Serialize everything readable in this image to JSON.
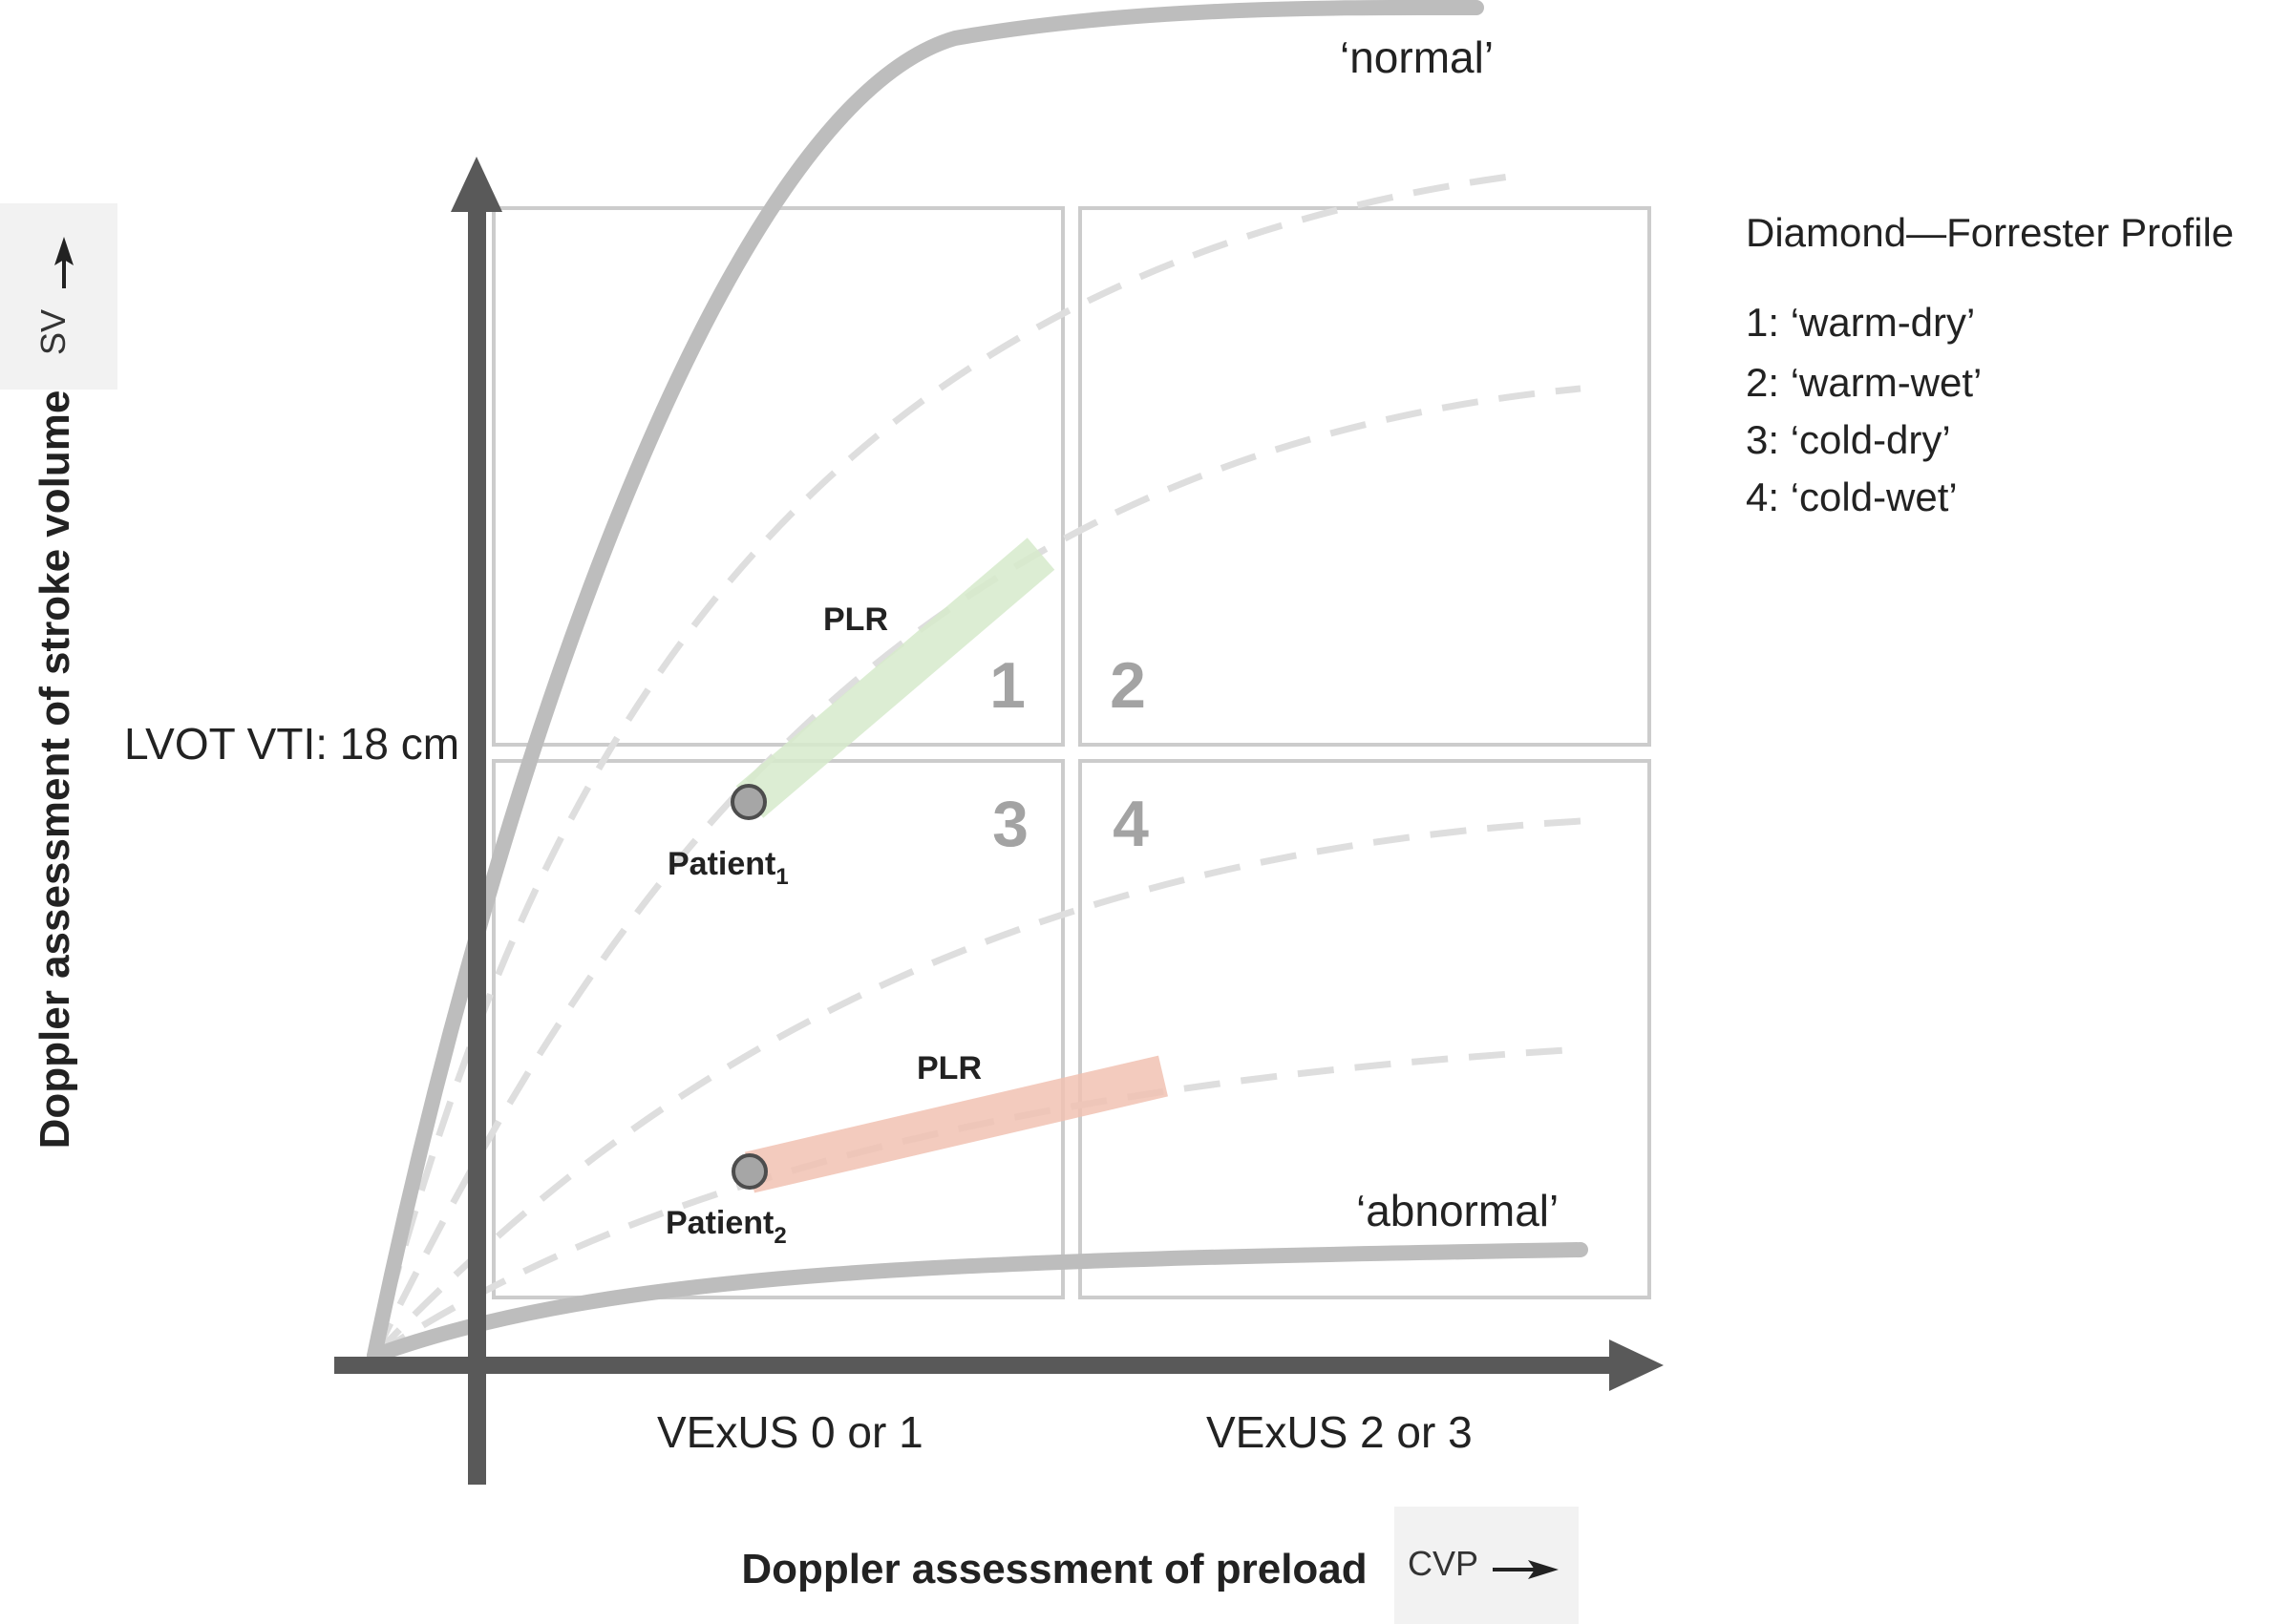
{
  "title": "Diamond—Forrester Profile",
  "profiles": [
    {
      "number": "1",
      "label": "1: ‘warm-dry’"
    },
    {
      "number": "2",
      "label": "2: ‘warm-wet’"
    },
    {
      "number": "3",
      "label": "3: ‘cold-dry’"
    },
    {
      "number": "4",
      "label": "4: ‘cold-wet’"
    }
  ],
  "axes": {
    "y_label": "Doppler assessment of stroke volume",
    "x_label": "Doppler assessment of preload",
    "y_box": "SV",
    "x_box": "CVP",
    "y_threshold": "LVOT VTI: 18 cm",
    "x_left_category": "VExUS 0 or 1",
    "x_right_category": "VExUS 2 or 3"
  },
  "curves": {
    "normal": "‘normal’",
    "abnormal": "‘abnormal’"
  },
  "patients": [
    {
      "name": "Patient",
      "subscript": "1",
      "maneuver": "PLR",
      "response": "responsive",
      "color": "#d7ebcc"
    },
    {
      "name": "Patient",
      "subscript": "2",
      "maneuver": "PLR",
      "response": "non-responsive",
      "color": "#f1c2b3"
    }
  ],
  "colors": {
    "axis": "#595959",
    "grid": "#cccccc",
    "curve_solid": "#bdbdbd",
    "curve_dashed": "#dedede",
    "box_bg": "#f2f2f2"
  }
}
